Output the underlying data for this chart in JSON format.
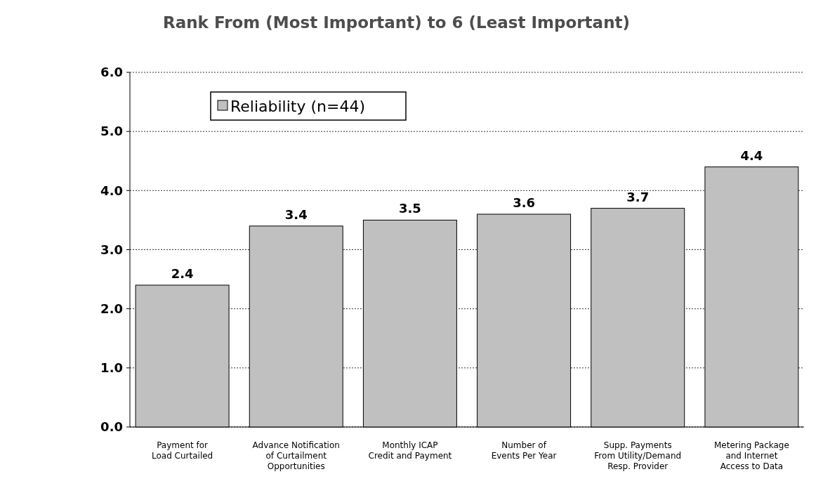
{
  "chart_data": {
    "type": "bar",
    "title": "Rank From (Most Important) to 6 (Least Important)",
    "categories": [
      "Payment for\nLoad Curtailed",
      "Advance Notification\nof Curtailment\nOpportunities",
      "Monthly ICAP\nCredit and Payment",
      "Number of\nEvents Per Year",
      "Supp. Payments\nFrom Utility/Demand\nResp. Provider",
      "Metering Package\nand Internet\nAccess to Data"
    ],
    "series": [
      {
        "name": "Reliability (n=44)",
        "color": "#c0c0c0",
        "values": [
          2.4,
          3.4,
          3.5,
          3.6,
          3.7,
          4.4
        ]
      }
    ],
    "ylim": [
      0,
      6
    ],
    "yticks": [
      {
        "value": 0,
        "label": "0.0"
      },
      {
        "value": 1,
        "label": "1.0"
      },
      {
        "value": 2,
        "label": "2.0"
      },
      {
        "value": 3,
        "label": "3.0"
      },
      {
        "value": 4,
        "label": "4.0"
      },
      {
        "value": 5,
        "label": "5.0"
      },
      {
        "value": 6,
        "label": "6.0"
      }
    ],
    "grid": "y",
    "legend": "top left",
    "data_labels": true
  }
}
